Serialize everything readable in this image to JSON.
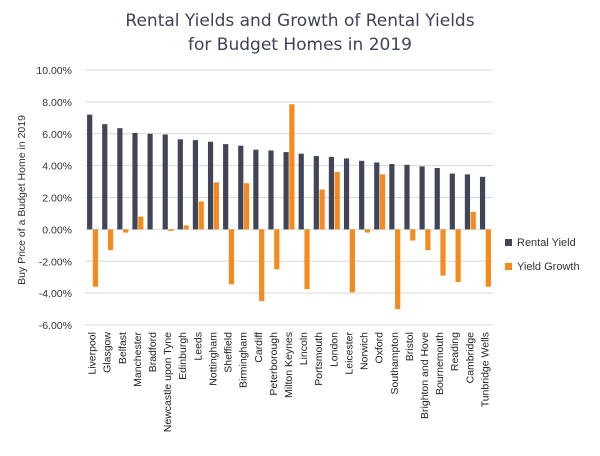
{
  "chart_data": {
    "type": "bar",
    "title_line1": "Rental Yields and Growth of Rental Yields",
    "title_line2": "for Budget Homes in 2019",
    "ylabel": "Buy Price of a Budget Home in 2019",
    "ylim": [
      -6,
      10
    ],
    "yticks": [
      -6,
      -4,
      -2,
      0,
      2,
      4,
      6,
      8,
      10
    ],
    "ytick_labels": [
      "-6.00%",
      "-4.00%",
      "-2.00%",
      "0.00%",
      "2.00%",
      "4.00%",
      "6.00%",
      "8.00%",
      "10.00%"
    ],
    "legend_position": "right",
    "categories": [
      "Liverpool",
      "Glasgow",
      "Belfast",
      "Manchester",
      "Bradford",
      "Newcastle upon Tyne",
      "Edinburgh",
      "Leeds",
      "Nottingham",
      "Sheffield",
      "Birmingham",
      "Cardiff",
      "Peterborough",
      "Milton Keynes",
      "Lincoln",
      "Portsmouth",
      "London",
      "Leicester",
      "Norwich",
      "Oxford",
      "Southampton",
      "Bristol",
      "Brighton and Hove",
      "Bournemouth",
      "Reading",
      "Cambridge",
      "Tunbridge Wells"
    ],
    "series": [
      {
        "name": "Rental Yield",
        "color": "#404657",
        "values": [
          7.2,
          6.6,
          6.35,
          6.05,
          6.0,
          5.95,
          5.65,
          5.6,
          5.5,
          5.35,
          5.25,
          5.0,
          4.95,
          4.85,
          4.75,
          4.6,
          4.55,
          4.45,
          4.3,
          4.2,
          4.1,
          4.05,
          3.95,
          3.85,
          3.5,
          3.45,
          3.3
        ]
      },
      {
        "name": "Yield Growth",
        "color": "#f58a1f",
        "values": [
          -3.6,
          -1.3,
          -0.2,
          0.8,
          0.0,
          -0.1,
          0.25,
          1.75,
          2.95,
          -3.45,
          2.9,
          -4.5,
          -2.5,
          7.85,
          -3.75,
          2.5,
          3.6,
          -3.95,
          -0.2,
          3.45,
          -5.0,
          -0.7,
          -1.3,
          -2.9,
          -3.3,
          1.1,
          -3.6
        ]
      }
    ]
  }
}
